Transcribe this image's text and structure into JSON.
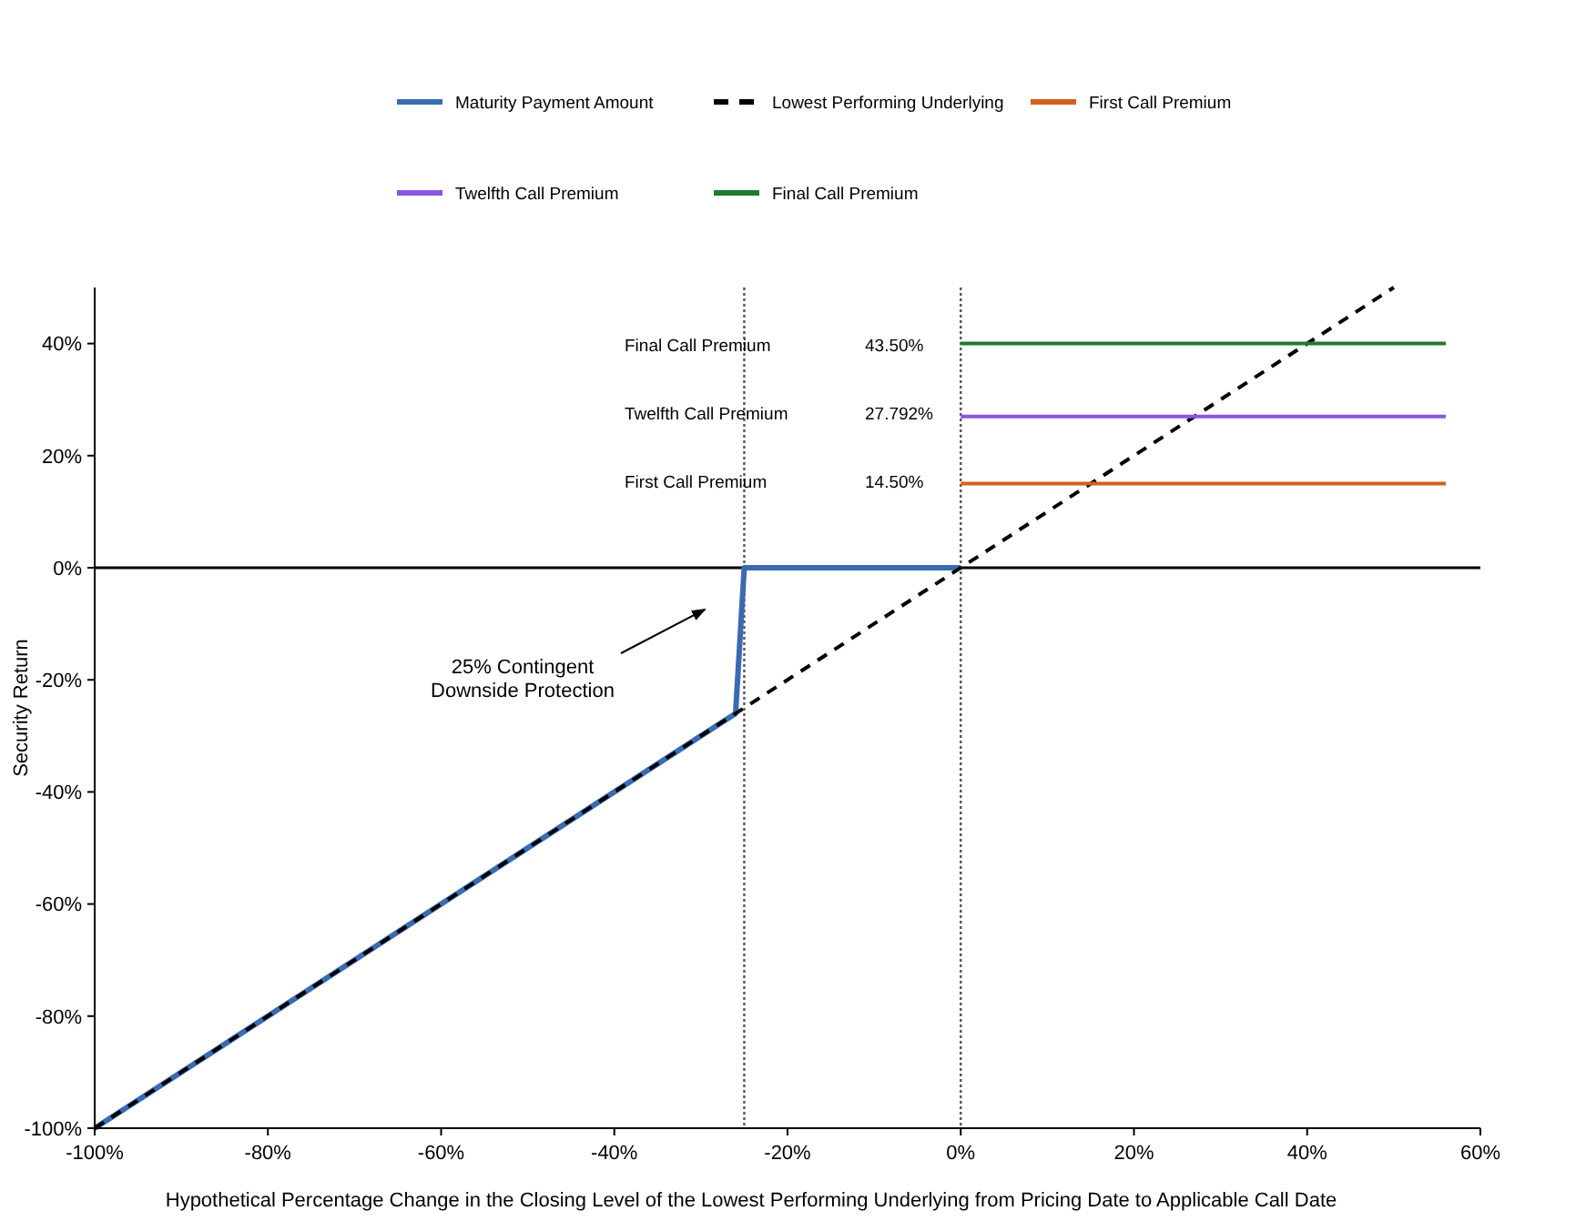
{
  "chart_data": {
    "type": "line",
    "xlabel": "Hypothetical Percentage Change in the Closing Level of the Lowest Performing Underlying from Pricing Date to Applicable Call Date",
    "ylabel": "Security Return",
    "xlim": [
      -100,
      60
    ],
    "ylim": [
      -100,
      50
    ],
    "xticks": [
      {
        "value": -100,
        "label": "-100%"
      },
      {
        "value": -80,
        "label": "-80%"
      },
      {
        "value": -60,
        "label": "-60%"
      },
      {
        "value": -40,
        "label": "-40%"
      },
      {
        "value": -20,
        "label": "-20%"
      },
      {
        "value": 0,
        "label": "0%"
      },
      {
        "value": 20,
        "label": "20%"
      },
      {
        "value": 40,
        "label": "40%"
      },
      {
        "value": 60,
        "label": "60%"
      }
    ],
    "yticks": [
      {
        "value": -100,
        "label": "-100%"
      },
      {
        "value": -80,
        "label": "-80%"
      },
      {
        "value": -60,
        "label": "-60%"
      },
      {
        "value": -40,
        "label": "-40%"
      },
      {
        "value": -20,
        "label": "-20%"
      },
      {
        "value": 0,
        "label": "0%"
      },
      {
        "value": 20,
        "label": "20%"
      },
      {
        "value": 40,
        "label": "40%"
      }
    ],
    "grid": false,
    "legend": "top",
    "marker": "none",
    "series": [
      {
        "name": "Maturity Payment Amount",
        "color": "#3a6bb0",
        "x": [
          -100,
          -26,
          -25,
          0
        ],
        "values": [
          -100,
          -26,
          0,
          0
        ]
      },
      {
        "name": "Lowest Performing Underlying",
        "color": "#000000",
        "line_style": "dashed",
        "x": [
          -100,
          50
        ],
        "values": [
          -100,
          50
        ]
      },
      {
        "name": "First Call Premium",
        "color": "#d2601e",
        "x": [
          0,
          56
        ],
        "values": [
          15,
          15
        ]
      },
      {
        "name": "Twelfth Call Premium",
        "color": "#8a55e0",
        "x": [
          0,
          56
        ],
        "values": [
          27,
          27
        ]
      },
      {
        "name": "Final Call Premium",
        "color": "#1f7a2e",
        "x": [
          0,
          56
        ],
        "values": [
          40,
          40
        ]
      }
    ],
    "ref_lines": [
      {
        "axis": "y",
        "value": 0,
        "label": null,
        "color": "#000000",
        "line_style": "solid"
      },
      {
        "axis": "x",
        "value": -25,
        "label": null,
        "color": "#555555",
        "line_style": "dotted"
      },
      {
        "axis": "x",
        "value": 0,
        "label": null,
        "color": "#555555",
        "line_style": "dotted"
      }
    ],
    "annotations": [
      "Final Call Premium",
      "43.50%",
      "Twelfth Call Premium",
      "27.792%",
      "First Call Premium",
      "14.50%",
      "25% Contingent\nDownside Protection"
    ]
  }
}
